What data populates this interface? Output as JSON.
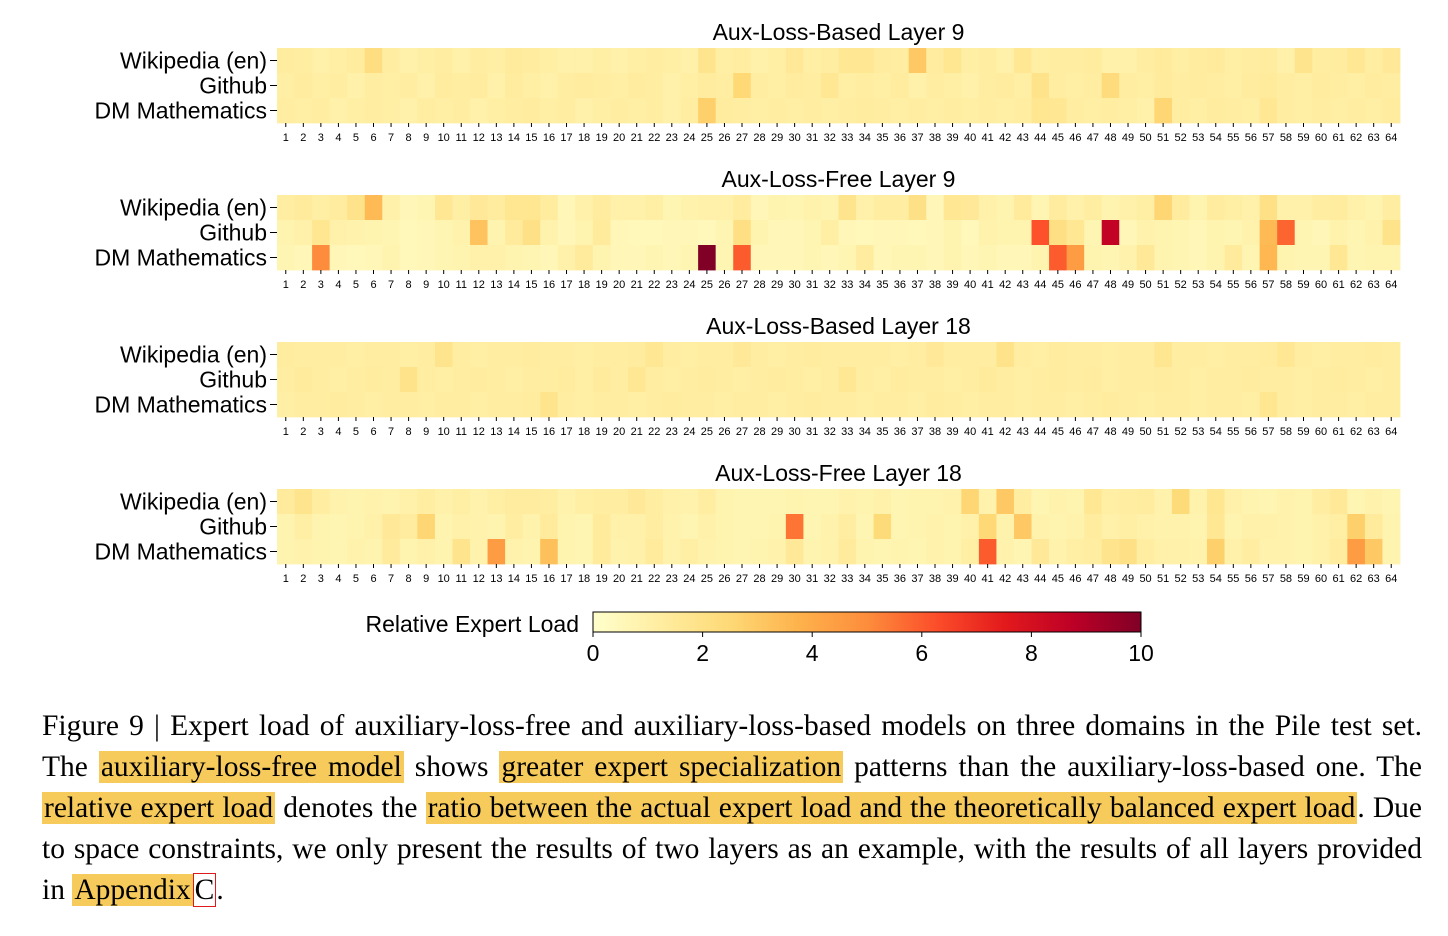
{
  "colors": {
    "colormap": [
      "#ffffcc",
      "#ffeda0",
      "#fed976",
      "#feb24c",
      "#fd8d3c",
      "#fc4e2a",
      "#e31a1c",
      "#bd0026",
      "#800026"
    ],
    "highlight": "#f6cb5b",
    "reference_box": "#e01a1a"
  },
  "chart_data": {
    "type": "heatmap",
    "colorbar": {
      "label": "Relative Expert Load",
      "range": [
        0,
        10
      ],
      "ticks": [
        "0",
        "2",
        "4",
        "6",
        "8",
        "10"
      ]
    },
    "experts": [
      "1",
      "2",
      "3",
      "4",
      "5",
      "6",
      "7",
      "8",
      "9",
      "10",
      "11",
      "12",
      "13",
      "14",
      "15",
      "16",
      "17",
      "18",
      "19",
      "20",
      "21",
      "22",
      "23",
      "24",
      "25",
      "26",
      "27",
      "28",
      "29",
      "30",
      "31",
      "32",
      "33",
      "34",
      "35",
      "36",
      "37",
      "38",
      "39",
      "40",
      "41",
      "42",
      "43",
      "44",
      "45",
      "46",
      "47",
      "48",
      "49",
      "50",
      "51",
      "52",
      "53",
      "54",
      "55",
      "56",
      "57",
      "58",
      "59",
      "60",
      "61",
      "62",
      "63",
      "64"
    ],
    "domains": [
      "Wikipedia (en)",
      "Github",
      "DM Mathematics"
    ],
    "panels": [
      {
        "title": "Aux-Loss-Based Layer 9",
        "values": [
          [
            1.3,
            1.2,
            1.0,
            1.1,
            1.3,
            2.2,
            1.2,
            1.0,
            1.1,
            1.2,
            1.0,
            1.2,
            1.1,
            1.4,
            1.3,
            1.1,
            1.0,
            1.0,
            1.1,
            1.0,
            1.1,
            1.2,
            1.1,
            1.0,
            1.8,
            1.1,
            1.2,
            1.0,
            1.1,
            1.5,
            1.1,
            1.2,
            1.6,
            1.6,
            1.3,
            1.2,
            3.0,
            1.3,
            1.7,
            1.1,
            1.2,
            1.0,
            1.6,
            1.1,
            1.2,
            1.2,
            1.3,
            1.0,
            1.0,
            1.2,
            1.4,
            1.1,
            1.3,
            1.4,
            1.1,
            1.2,
            1.3,
            1.0,
            1.8,
            1.2,
            1.3,
            1.6,
            1.2,
            1.5
          ],
          [
            1.1,
            1.3,
            1.1,
            1.2,
            1.0,
            1.2,
            1.1,
            1.2,
            1.0,
            1.3,
            1.2,
            1.3,
            1.0,
            1.3,
            1.1,
            1.0,
            1.2,
            1.3,
            1.2,
            1.1,
            1.3,
            1.2,
            1.0,
            1.1,
            1.3,
            1.2,
            2.5,
            1.2,
            1.1,
            1.3,
            1.2,
            1.6,
            1.1,
            1.2,
            1.1,
            1.3,
            1.0,
            1.2,
            1.1,
            1.0,
            1.2,
            1.3,
            1.1,
            1.9,
            1.2,
            1.1,
            1.2,
            2.3,
            1.2,
            1.1,
            1.4,
            1.2,
            1.3,
            1.2,
            1.1,
            1.3,
            1.4,
            1.2,
            1.1,
            1.3,
            1.2,
            1.1,
            1.3,
            1.2
          ],
          [
            1.2,
            1.1,
            1.2,
            1.0,
            1.1,
            1.2,
            1.1,
            1.0,
            1.2,
            1.1,
            1.2,
            1.0,
            1.1,
            1.2,
            1.3,
            1.1,
            1.2,
            1.0,
            1.1,
            1.2,
            1.1,
            1.2,
            1.0,
            1.2,
            2.8,
            1.3,
            1.2,
            1.1,
            1.2,
            1.1,
            1.2,
            1.1,
            1.2,
            1.3,
            1.2,
            1.1,
            1.2,
            1.1,
            1.2,
            1.1,
            1.2,
            1.1,
            1.2,
            1.7,
            1.6,
            1.2,
            1.1,
            1.2,
            1.1,
            1.0,
            2.6,
            1.2,
            1.1,
            1.3,
            1.2,
            1.1,
            1.6,
            1.2,
            1.1,
            1.2,
            1.1,
            1.2,
            1.1,
            1.3
          ]
        ]
      },
      {
        "title": "Aux-Loss-Free Layer 9",
        "values": [
          [
            1.2,
            1.4,
            1.1,
            1.3,
            1.9,
            3.5,
            1.0,
            0.6,
            0.7,
            1.6,
            1.1,
            1.5,
            1.3,
            1.7,
            1.7,
            1.3,
            0.6,
            1.0,
            1.3,
            1.0,
            1.0,
            1.1,
            0.7,
            0.9,
            1.0,
            1.0,
            1.3,
            0.6,
            0.8,
            0.7,
            0.9,
            0.8,
            1.8,
            1.0,
            1.2,
            1.2,
            2.0,
            0.6,
            1.6,
            1.5,
            1.0,
            0.8,
            1.4,
            0.7,
            1.3,
            1.0,
            1.2,
            0.8,
            1.0,
            1.1,
            2.6,
            1.3,
            0.8,
            1.3,
            1.1,
            1.0,
            2.0,
            1.0,
            1.0,
            1.2,
            1.3,
            1.0,
            0.8,
            1.2
          ],
          [
            0.8,
            1.0,
            1.7,
            1.0,
            0.9,
            0.8,
            0.7,
            0.5,
            0.6,
            0.7,
            0.9,
            3.2,
            0.8,
            1.4,
            2.0,
            0.9,
            0.6,
            0.8,
            1.4,
            0.6,
            0.5,
            0.5,
            0.6,
            0.6,
            0.5,
            0.7,
            2.1,
            0.8,
            0.6,
            0.6,
            0.7,
            1.1,
            0.6,
            0.5,
            0.6,
            0.6,
            0.5,
            0.6,
            0.8,
            0.5,
            0.9,
            0.8,
            0.8,
            6.2,
            2.1,
            1.6,
            0.7,
            8.6,
            0.6,
            0.9,
            0.8,
            0.7,
            0.6,
            0.8,
            0.7,
            0.9,
            3.5,
            5.8,
            0.7,
            0.6,
            0.9,
            0.7,
            0.9,
            1.9
          ],
          [
            0.7,
            0.6,
            5.0,
            0.6,
            0.5,
            0.6,
            0.8,
            0.5,
            0.6,
            0.7,
            0.8,
            1.0,
            1.0,
            0.8,
            0.7,
            0.6,
            1.0,
            1.4,
            0.8,
            0.6,
            0.6,
            0.7,
            0.6,
            0.7,
            10.0,
            0.7,
            6.0,
            0.6,
            0.6,
            0.6,
            0.7,
            0.6,
            0.7,
            1.3,
            0.6,
            0.7,
            0.7,
            0.6,
            0.8,
            0.6,
            0.7,
            0.6,
            0.6,
            0.8,
            6.0,
            4.5,
            0.8,
            0.7,
            0.9,
            1.5,
            0.8,
            0.7,
            0.6,
            0.8,
            1.4,
            0.7,
            3.6,
            0.8,
            0.7,
            0.7,
            1.6,
            0.7,
            0.8,
            0.8
          ]
        ]
      },
      {
        "title": "Aux-Loss-Based Layer 18",
        "values": [
          [
            1.3,
            1.2,
            1.2,
            1.2,
            1.1,
            1.2,
            1.2,
            1.1,
            1.2,
            1.8,
            1.2,
            1.1,
            1.2,
            1.2,
            1.3,
            1.2,
            1.2,
            1.1,
            1.2,
            1.2,
            1.3,
            1.6,
            1.2,
            1.1,
            1.2,
            1.2,
            1.5,
            1.2,
            1.1,
            1.2,
            1.3,
            1.2,
            1.2,
            1.2,
            1.2,
            1.1,
            1.2,
            1.5,
            1.2,
            1.2,
            1.2,
            1.9,
            1.2,
            1.1,
            1.3,
            1.2,
            1.2,
            1.1,
            1.2,
            1.2,
            1.7,
            1.2,
            1.2,
            1.1,
            1.2,
            1.2,
            1.3,
            1.6,
            1.2,
            1.1,
            1.2,
            1.2,
            1.3,
            1.2
          ],
          [
            1.2,
            1.4,
            1.2,
            1.1,
            1.2,
            1.3,
            1.2,
            1.9,
            1.2,
            1.1,
            1.2,
            1.3,
            1.2,
            1.1,
            1.2,
            1.2,
            1.3,
            1.1,
            1.4,
            1.2,
            1.6,
            1.2,
            1.1,
            1.2,
            1.3,
            1.2,
            1.1,
            1.2,
            1.3,
            1.2,
            1.1,
            1.2,
            1.6,
            1.2,
            1.1,
            1.3,
            1.2,
            1.2,
            1.1,
            1.2,
            1.4,
            1.2,
            1.1,
            1.2,
            1.3,
            1.2,
            1.3,
            1.1,
            1.2,
            1.2,
            1.3,
            1.2,
            1.1,
            1.2,
            1.2,
            1.3,
            1.2,
            1.2,
            1.1,
            1.2,
            1.3,
            1.2,
            1.1,
            1.2
          ],
          [
            1.1,
            1.2,
            1.2,
            1.3,
            1.2,
            1.1,
            1.2,
            1.2,
            1.1,
            1.2,
            1.2,
            1.1,
            1.2,
            1.2,
            1.3,
            1.8,
            1.2,
            1.1,
            1.2,
            1.2,
            1.1,
            1.2,
            1.3,
            1.2,
            1.2,
            1.1,
            1.2,
            1.2,
            1.1,
            1.2,
            1.3,
            1.2,
            1.2,
            1.1,
            1.2,
            1.2,
            1.1,
            1.3,
            1.2,
            1.1,
            1.2,
            1.2,
            1.1,
            1.2,
            1.2,
            1.1,
            1.2,
            1.3,
            1.2,
            1.1,
            1.2,
            1.2,
            1.1,
            1.2,
            1.2,
            1.1,
            1.7,
            1.2,
            1.1,
            1.2,
            1.2,
            1.1,
            1.2,
            1.2
          ]
        ]
      },
      {
        "title": "Aux-Loss-Free Layer 18",
        "values": [
          [
            1.4,
            1.8,
            1.2,
            0.9,
            0.8,
            0.9,
            0.8,
            1.0,
            1.2,
            1.0,
            1.1,
            0.9,
            1.1,
            1.3,
            1.3,
            1.2,
            0.9,
            1.1,
            1.2,
            1.2,
            1.5,
            1.2,
            1.0,
            0.9,
            1.2,
            0.8,
            0.7,
            0.7,
            0.7,
            0.8,
            0.7,
            0.7,
            0.9,
            0.8,
            1.0,
            0.7,
            0.8,
            0.8,
            0.9,
            2.6,
            0.9,
            3.0,
            1.2,
            0.7,
            0.9,
            0.8,
            1.6,
            1.1,
            1.2,
            1.3,
            0.9,
            2.4,
            0.9,
            1.7,
            1.0,
            0.8,
            0.7,
            0.9,
            0.8,
            1.2,
            1.5,
            0.7,
            0.9,
            0.7
          ],
          [
            0.8,
            1.1,
            0.8,
            0.7,
            0.8,
            1.0,
            1.5,
            1.3,
            2.6,
            0.8,
            1.0,
            0.9,
            0.8,
            1.2,
            0.9,
            1.4,
            0.8,
            0.7,
            1.4,
            1.0,
            1.0,
            1.2,
            0.9,
            0.7,
            1.0,
            0.8,
            0.7,
            0.7,
            0.8,
            5.5,
            0.7,
            0.9,
            1.2,
            0.7,
            2.4,
            0.7,
            0.8,
            0.9,
            0.8,
            1.0,
            2.5,
            0.9,
            3.0,
            0.9,
            0.8,
            0.9,
            1.3,
            1.0,
            1.1,
            1.0,
            0.9,
            0.9,
            0.8,
            1.6,
            0.8,
            1.0,
            1.0,
            0.9,
            0.8,
            1.0,
            1.1,
            2.8,
            1.4,
            0.8
          ],
          [
            0.8,
            0.9,
            0.8,
            0.7,
            0.9,
            0.8,
            1.4,
            0.8,
            1.0,
            0.8,
            1.8,
            0.9,
            4.5,
            0.9,
            0.8,
            3.3,
            0.8,
            0.7,
            1.4,
            0.9,
            1.0,
            1.4,
            0.9,
            1.1,
            0.9,
            0.8,
            0.7,
            0.8,
            0.9,
            1.5,
            0.8,
            0.9,
            1.4,
            0.8,
            0.7,
            0.8,
            0.7,
            0.9,
            0.8,
            1.1,
            6.0,
            0.9,
            0.7,
            1.5,
            0.9,
            1.1,
            1.2,
            1.8,
            2.0,
            1.2,
            1.0,
            1.0,
            0.9,
            2.8,
            1.0,
            1.2,
            0.9,
            0.9,
            0.8,
            1.0,
            1.3,
            4.5,
            3.0,
            0.8
          ]
        ]
      }
    ]
  },
  "caption": {
    "s1": "Figure 9 | Expert load of auxiliary-loss-free and auxiliary-loss-based models on three domains in the Pile test set. The ",
    "h1": "auxiliary-loss-free model",
    "s2": " shows ",
    "h2": "greater expert specialization",
    "s3": " patterns than the auxiliary-loss-based one. The ",
    "h3": "relative expert load",
    "s4": " denotes the ",
    "h4": "ratio between the actual expert load and the theoretically balanced expert load",
    "s5": ". Due to space constraints, we only present the results of two layers as an example, with the results of all layers provided in ",
    "h5": "Appendix",
    "h5ref": "C",
    "s6": "."
  }
}
